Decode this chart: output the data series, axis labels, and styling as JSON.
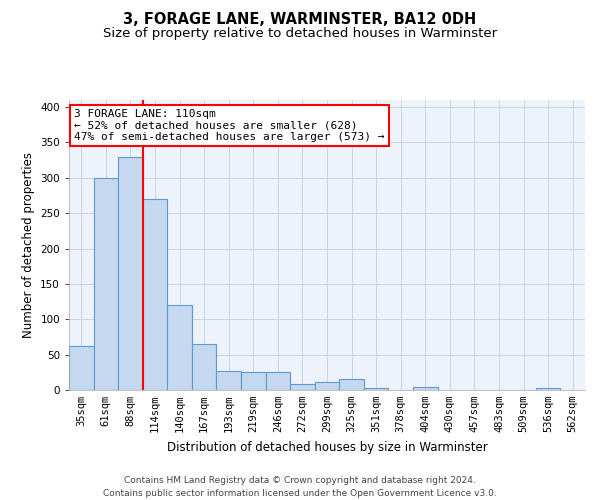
{
  "title": "3, FORAGE LANE, WARMINSTER, BA12 0DH",
  "subtitle": "Size of property relative to detached houses in Warminster",
  "xlabel": "Distribution of detached houses by size in Warminster",
  "ylabel": "Number of detached properties",
  "footer_line1": "Contains HM Land Registry data © Crown copyright and database right 2024.",
  "footer_line2": "Contains public sector information licensed under the Open Government Licence v3.0.",
  "bin_labels": [
    "35sqm",
    "61sqm",
    "88sqm",
    "114sqm",
    "140sqm",
    "167sqm",
    "193sqm",
    "219sqm",
    "246sqm",
    "272sqm",
    "299sqm",
    "325sqm",
    "351sqm",
    "378sqm",
    "404sqm",
    "430sqm",
    "457sqm",
    "483sqm",
    "509sqm",
    "536sqm",
    "562sqm"
  ],
  "bar_heights": [
    62,
    300,
    330,
    270,
    120,
    65,
    27,
    25,
    25,
    8,
    12,
    15,
    3,
    0,
    4,
    0,
    0,
    0,
    0,
    3,
    0
  ],
  "bar_color": "#c5d8f0",
  "bar_edgecolor": "#5b9bd5",
  "bar_linewidth": 0.8,
  "vline_x_index": 2.5,
  "vline_color": "red",
  "vline_linewidth": 1.5,
  "annotation_text": "3 FORAGE LANE: 110sqm\n← 52% of detached houses are smaller (628)\n47% of semi-detached houses are larger (573) →",
  "annotation_box_edgecolor": "red",
  "annotation_box_facecolor": "white",
  "ylim": [
    0,
    410
  ],
  "yticks": [
    0,
    50,
    100,
    150,
    200,
    250,
    300,
    350,
    400
  ],
  "grid_color": "#c8d4e8",
  "background_color": "#edf2fb",
  "title_fontsize": 10.5,
  "subtitle_fontsize": 9.5,
  "ylabel_fontsize": 8.5,
  "xlabel_fontsize": 8.5,
  "tick_fontsize": 7.5,
  "annotation_fontsize": 8,
  "footer_fontsize": 6.5
}
